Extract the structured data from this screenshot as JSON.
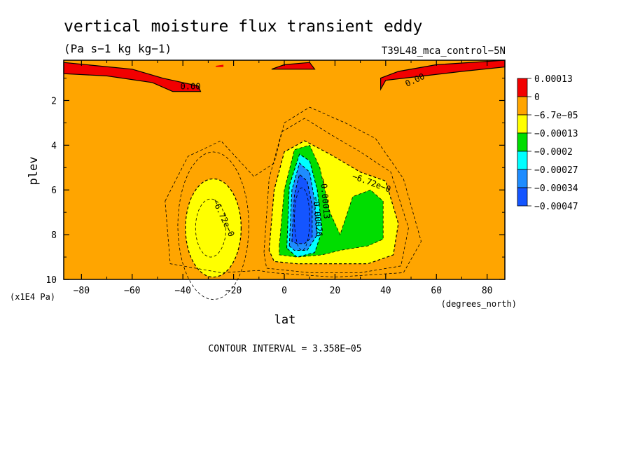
{
  "chart_data": {
    "type": "heatmap",
    "title": "vertical moisture flux transient eddy",
    "units": "(Pa s−1 kg kg−1)",
    "run_label": "T39L48_mca_control−5N",
    "xlabel": "lat",
    "xunits": "(degrees_north)",
    "ylabel": "plev",
    "yunits": "(x1E4 Pa)",
    "xlim": [
      -87,
      87
    ],
    "ylim": [
      10,
      0.2
    ],
    "x_ticks": [
      -80,
      -60,
      -40,
      -20,
      0,
      20,
      40,
      60,
      80
    ],
    "x_tick_labels": [
      "−80",
      "−60",
      "−40",
      "−20",
      "0",
      "20",
      "40",
      "60",
      "80"
    ],
    "y_ticks": [
      2,
      4,
      6,
      8,
      10
    ],
    "y_tick_labels": [
      "2",
      "4",
      "6",
      "8",
      "10"
    ],
    "contour_interval_text": "CONTOUR INTERVAL = 3.358E−05",
    "colors": {
      "c0": "#f20000",
      "c1": "#ffa500",
      "c2": "#ffff00",
      "c3": "#00dd00",
      "c4": "#00ffff",
      "c5": "#1e8cff",
      "c6": "#1455ff"
    },
    "legend": {
      "labels": [
        "0.00013",
        "0",
        "−6.7e−05",
        "−0.00013",
        "−0.0002",
        "−0.00027",
        "−0.00034",
        "−0.00047"
      ]
    },
    "contour_labels": [
      {
        "text": "0.00",
        "lat": -37,
        "plev": 1.5,
        "angle": 0
      },
      {
        "text": "0.00",
        "lat": 52,
        "plev": 1.2,
        "angle": -25
      },
      {
        "text": "−6.72e−0",
        "lat": 34,
        "plev": 5.8,
        "angle": 20
      },
      {
        "text": "−6.72e−0",
        "lat": -25,
        "plev": 7.3,
        "angle": 65
      },
      {
        "text": "−0.00013",
        "lat": 15,
        "plev": 6.4,
        "angle": 85
      },
      {
        "text": "−0.00026",
        "lat": 12,
        "plev": 7.2,
        "angle": 85
      }
    ]
  }
}
